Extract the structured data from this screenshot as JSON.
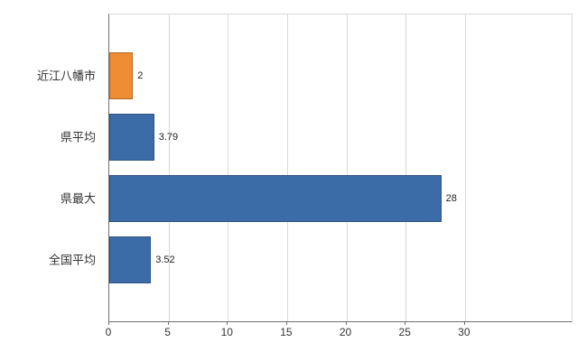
{
  "chart_data": {
    "type": "bar",
    "orientation": "horizontal",
    "title": "",
    "xlabel": "",
    "ylabel": "",
    "categories": [
      "近江八幡市",
      "県平均",
      "県最大",
      "全国平均"
    ],
    "values": [
      2,
      3.79,
      28,
      3.52
    ],
    "value_labels": [
      "2",
      "3.79",
      "28",
      "3.52"
    ],
    "bar_colors": [
      "#ED8C33",
      "#3B6CA8",
      "#3B6CA8",
      "#3B6CA8"
    ],
    "bar_border_colors": [
      "#B5691C",
      "#2D5380",
      "#2D5380",
      "#2D5380"
    ],
    "xlim": [
      0,
      39
    ],
    "xticks": [
      0,
      5,
      10,
      15,
      20,
      25,
      30
    ],
    "grid": true,
    "legend": false
  },
  "colors": {
    "background": "#ffffff",
    "grid": "#d9d9d9",
    "axis": "#707070",
    "text": "#333333"
  }
}
